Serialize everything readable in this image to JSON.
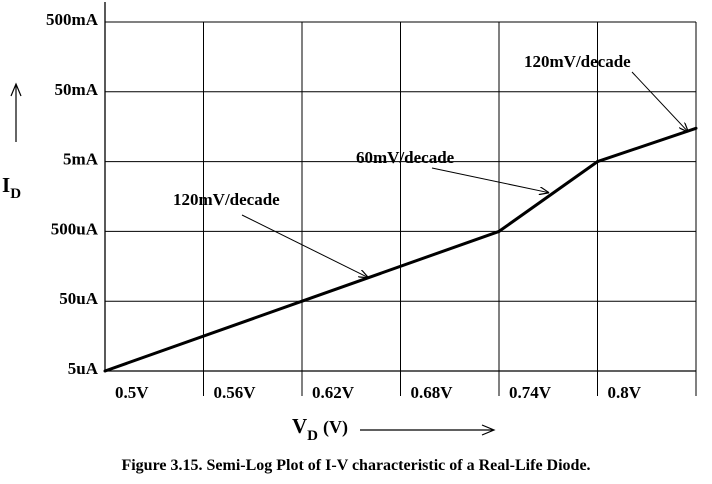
{
  "chart_data": {
    "type": "line",
    "xscale": "linear",
    "yscale": "log",
    "x_ticks": [
      0.5,
      0.56,
      0.62,
      0.68,
      0.74,
      0.8
    ],
    "x_tick_labels": [
      "0.5V",
      "0.56V",
      "0.62V",
      "0.68V",
      "0.74V",
      "0.8V"
    ],
    "y_ticks": [
      5e-06,
      5e-05,
      0.0005,
      0.005,
      0.05,
      0.5
    ],
    "y_tick_labels": [
      "5uA",
      "50uA",
      "500uA",
      "5mA",
      "50mA",
      "500mA"
    ],
    "xlim": [
      0.5,
      0.86
    ],
    "ylim": [
      5e-06,
      0.5
    ],
    "grid": true,
    "series": [
      {
        "x": [
          0.5,
          0.62,
          0.74,
          0.8,
          0.86
        ],
        "y": [
          5e-06,
          5e-05,
          0.0005,
          0.005,
          0.015
        ]
      }
    ],
    "ylabel": {
      "symbol": "I",
      "subscript": "D"
    },
    "xlabel": {
      "symbol": "V",
      "subscript": "D",
      "unit": "(V)"
    },
    "annotations": [
      {
        "text": "120mV/decade",
        "target_x": 0.66,
        "target_y": 0.00011
      },
      {
        "text": "60mV/decade",
        "target_x": 0.77,
        "target_y": 0.0018
      },
      {
        "text": "120mV/decade",
        "target_x": 0.855,
        "target_y": 0.0135
      }
    ],
    "caption": "Figure 3.15. Semi-Log Plot of I-V characteristic of a Real-Life Diode.",
    "colors": {
      "line": "#000000",
      "grid": "#000000",
      "background": "#ffffff"
    }
  }
}
